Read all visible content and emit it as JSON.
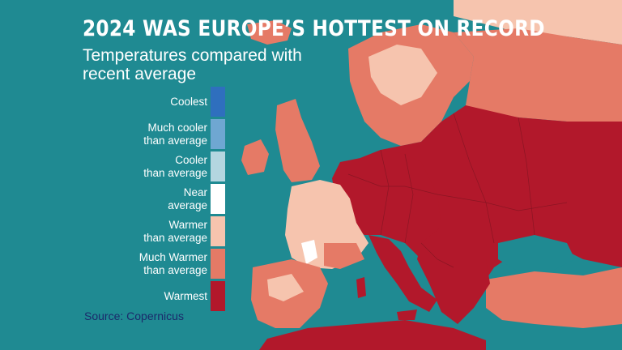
{
  "title": "2024 WAS EUROPE’S HOTTEST ON RECORD",
  "subtitle": "Temperatures compared with recent average",
  "legend": {
    "items": [
      {
        "label_1": "Coolest",
        "label_2": "",
        "color": "#2f6fbe"
      },
      {
        "label_1": "Much cooler",
        "label_2": "than average",
        "color": "#6fa7d2"
      },
      {
        "label_1": "Cooler",
        "label_2": "than average",
        "color": "#b4d6e0"
      },
      {
        "label_1": "Near",
        "label_2": "average",
        "color": "#ffffff"
      },
      {
        "label_1": "Warmer",
        "label_2": "than average",
        "color": "#f6c4ae"
      },
      {
        "label_1": "Much Warmer",
        "label_2": "than average",
        "color": "#e57a66"
      },
      {
        "label_1": "Warmest",
        "label_2": "",
        "color": "#b2182b"
      }
    ]
  },
  "source": "Source: Copernicus",
  "colors": {
    "sea": "#1f8a92",
    "warmest": "#b2182b",
    "much_warmer": "#e57a66",
    "warmer": "#f6c4ae",
    "near": "#ffffff",
    "borders": "#7a1420"
  }
}
